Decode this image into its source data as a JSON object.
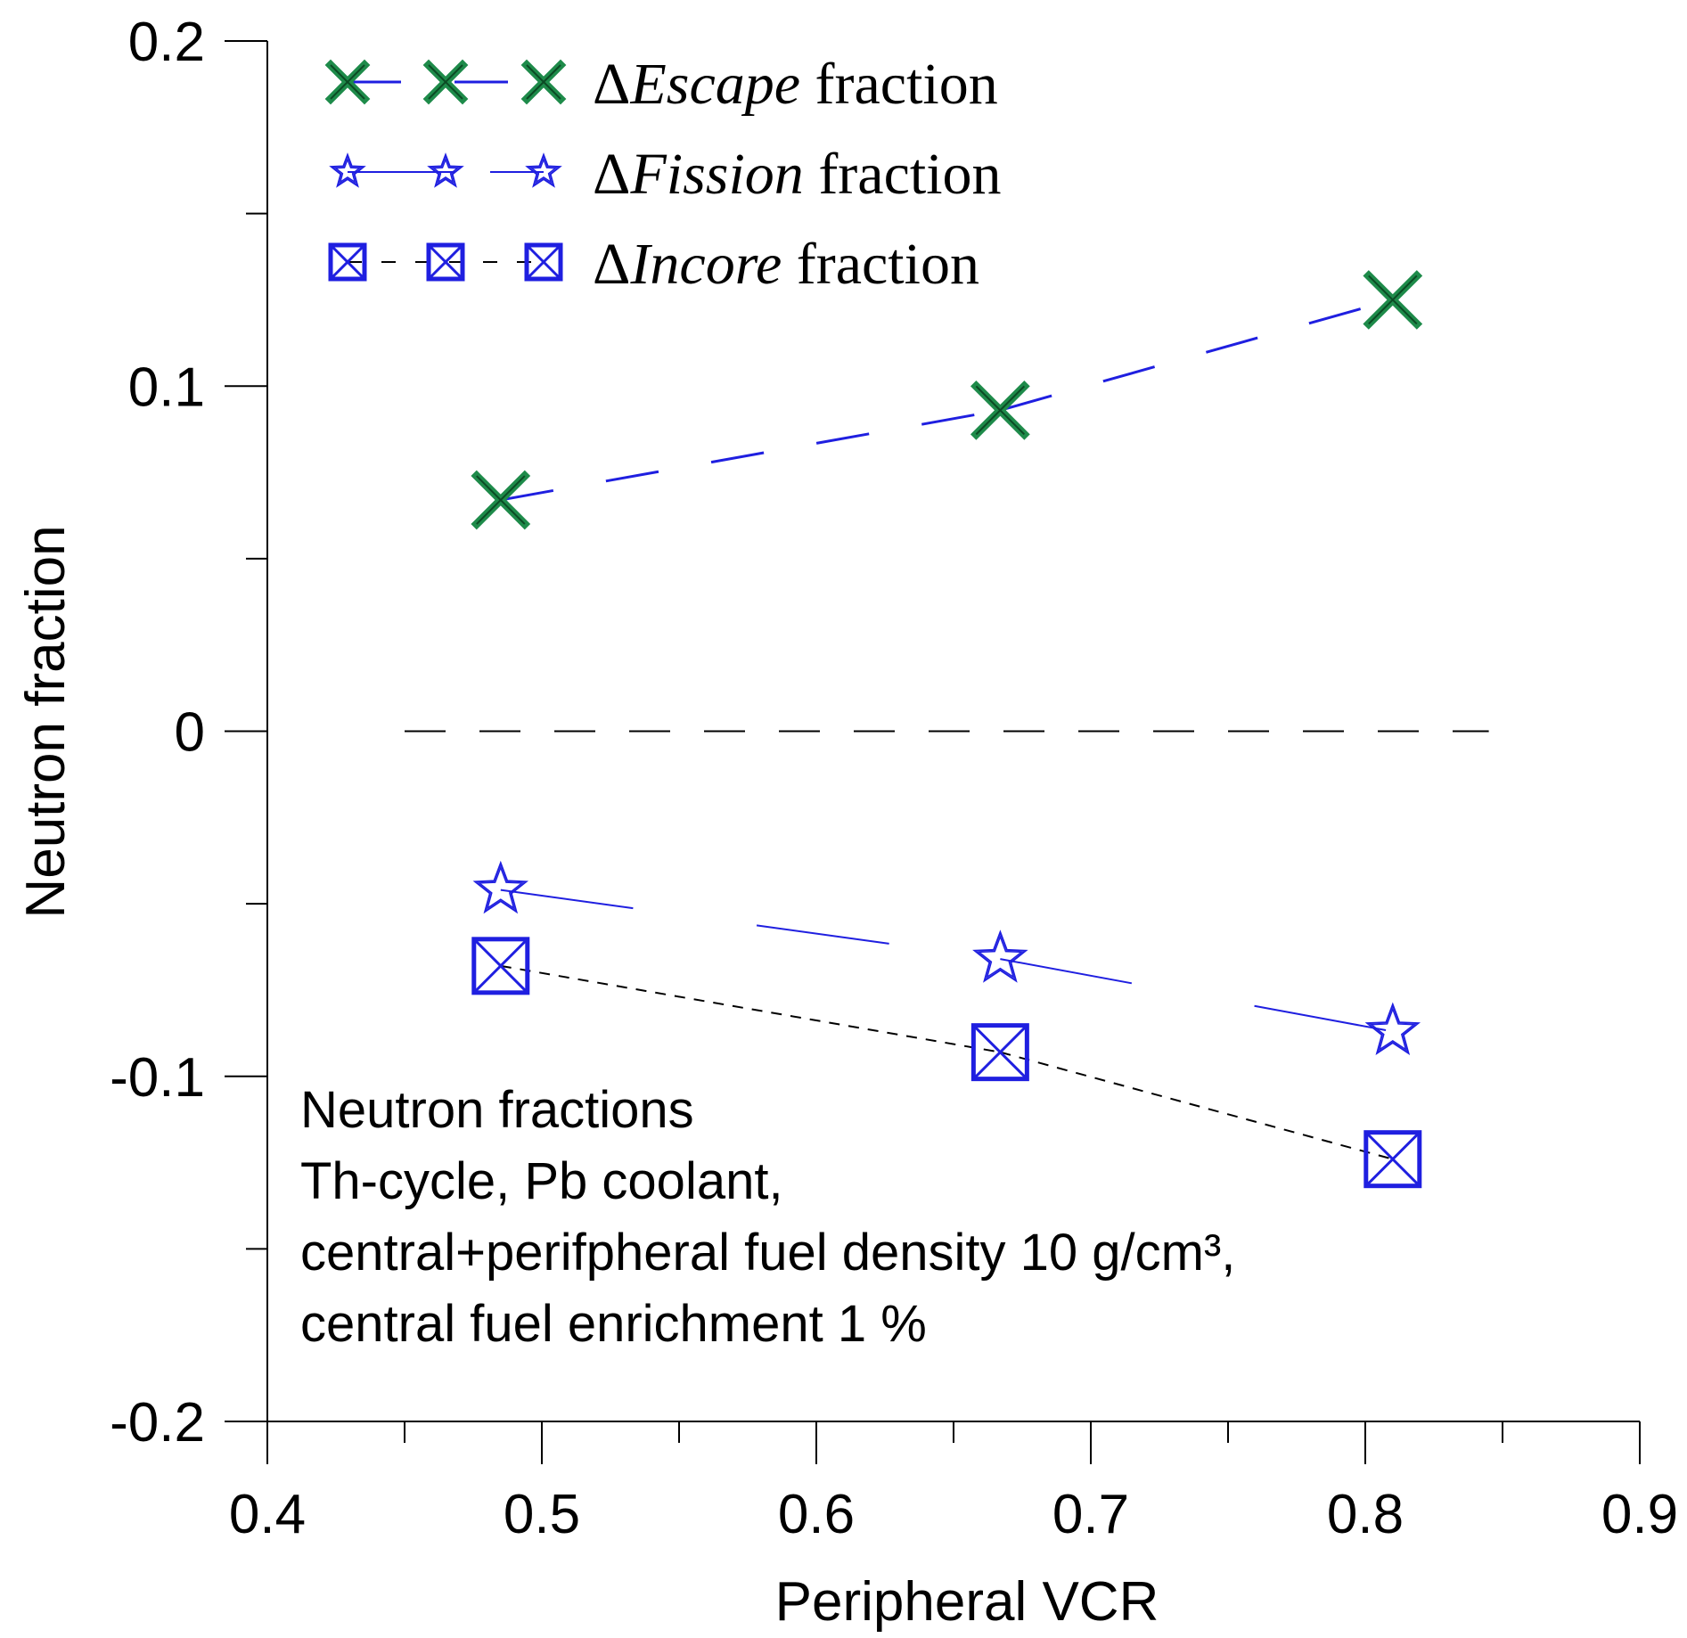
{
  "chart_data": {
    "type": "line",
    "xlabel": "Peripheral VCR",
    "ylabel": "Neutron fraction",
    "xlim": [
      0.4,
      0.9
    ],
    "ylim": [
      -0.2,
      0.2
    ],
    "x_ticks": [
      "0.4",
      "0.5",
      "0.6",
      "0.7",
      "0.8",
      "0.9"
    ],
    "y_ticks": [
      "0.2",
      "0.1",
      "0",
      "-0.1",
      "-0.2"
    ],
    "x": [
      0.485,
      0.667,
      0.81
    ],
    "series": [
      {
        "name": "ΔEscape fraction",
        "symbol": "Δ",
        "italic": "Escape",
        "rest": " fraction",
        "marker": "x",
        "line_color": "#1f1fe0",
        "marker_color": "#1e8b4a",
        "values": [
          0.067,
          0.093,
          0.125
        ]
      },
      {
        "name": "ΔFission fraction",
        "symbol": "Δ",
        "italic": "Fission",
        "rest": " fraction",
        "marker": "star",
        "line_color": "#1f1fe0",
        "marker_color": "#1f1fe0",
        "values": [
          -0.046,
          -0.066,
          -0.087
        ]
      },
      {
        "name": "ΔIncore fraction",
        "symbol": "Δ",
        "italic": "Incore",
        "rest": " fraction",
        "marker": "boxx",
        "line_color": "#000000",
        "marker_color": "#1f1fe0",
        "values": [
          -0.068,
          -0.093,
          -0.124
        ]
      }
    ],
    "reference_line": {
      "y": 0,
      "x_range": [
        0.45,
        0.845
      ],
      "color": "#000000"
    },
    "annotation": [
      "Neutron fractions",
      "Th-cycle, Pb coolant,",
      "central+perifpheral fuel density 10 g/cm³,",
      "central fuel enrichment 1 %"
    ],
    "legend_position": "top-left",
    "grid": false
  }
}
